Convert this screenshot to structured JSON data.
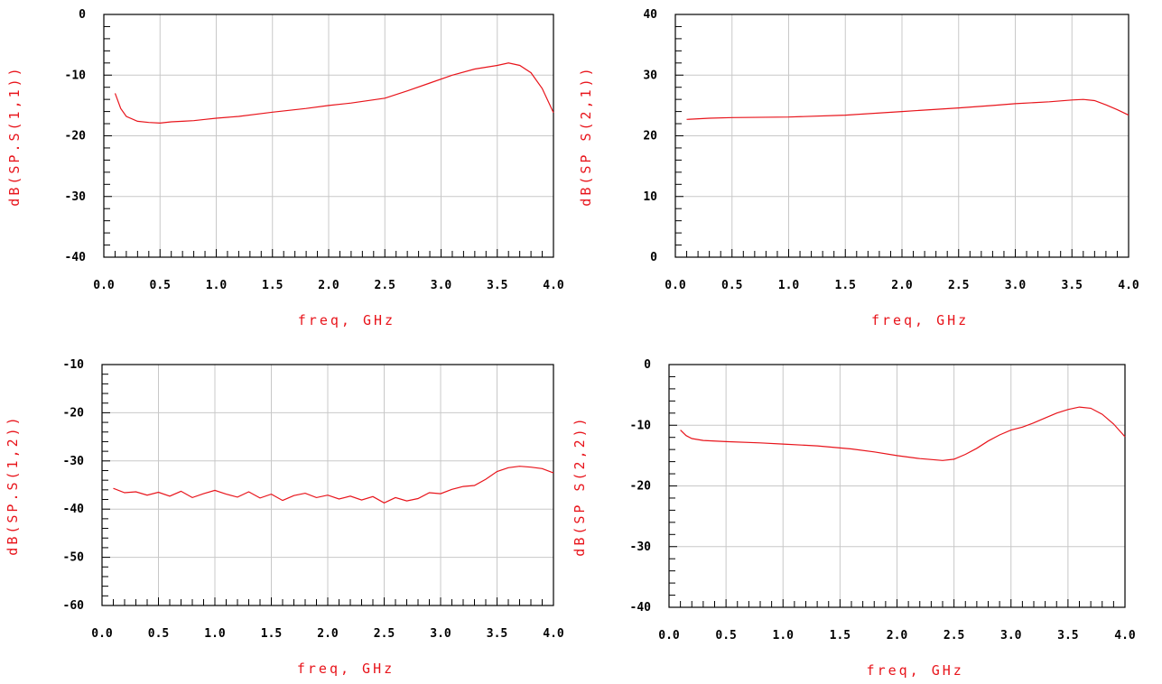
{
  "colors": {
    "trace": "#e8141b",
    "axis": "#000000",
    "grid": "#c8c8c8",
    "label": "#e8141b"
  },
  "chart_data": [
    {
      "type": "line",
      "xlabel": "freq, GHz",
      "ylabel": "dB(SP.S(1,1))",
      "xlim": [
        0,
        4.0
      ],
      "ylim": [
        -40,
        0
      ],
      "xticks": [
        "0.0",
        "0.5",
        "1.0",
        "1.5",
        "2.0",
        "2.5",
        "3.0",
        "3.5",
        "4.0"
      ],
      "yticks": [
        "0",
        "-10",
        "-20",
        "-30",
        "-40"
      ],
      "grid": true,
      "series": [
        {
          "name": "",
          "x": [
            0.1,
            0.15,
            0.2,
            0.3,
            0.4,
            0.5,
            0.6,
            0.7,
            0.8,
            0.9,
            1.0,
            1.2,
            1.5,
            1.8,
            2.0,
            2.2,
            2.5,
            2.7,
            2.9,
            3.1,
            3.3,
            3.5,
            3.6,
            3.7,
            3.8,
            3.9,
            4.0
          ],
          "y": [
            -13,
            -15.5,
            -16.8,
            -17.6,
            -17.8,
            -17.9,
            -17.7,
            -17.6,
            -17.5,
            -17.3,
            -17.1,
            -16.8,
            -16.1,
            -15.5,
            -15,
            -14.6,
            -13.8,
            -12.6,
            -11.3,
            -10,
            -9,
            -8.4,
            -8,
            -8.4,
            -9.6,
            -12.2,
            -16.2
          ]
        }
      ]
    },
    {
      "type": "line",
      "xlabel": "freq, GHz",
      "ylabel": "dB(SP S(2,1))",
      "xlim": [
        0,
        4.0
      ],
      "ylim": [
        0,
        40
      ],
      "xticks": [
        "0.0",
        "0.5",
        "1.0",
        "1.5",
        "2.0",
        "2.5",
        "3.0",
        "3.5",
        "4.0"
      ],
      "yticks": [
        "40",
        "30",
        "20",
        "10",
        "0"
      ],
      "grid": true,
      "series": [
        {
          "name": "",
          "x": [
            0.1,
            0.3,
            0.5,
            1.0,
            1.5,
            2.0,
            2.5,
            2.8,
            3.0,
            3.3,
            3.5,
            3.6,
            3.7,
            3.8,
            3.9,
            4.0
          ],
          "y": [
            22.7,
            22.9,
            23,
            23.1,
            23.4,
            24,
            24.6,
            25,
            25.3,
            25.6,
            25.9,
            26,
            25.8,
            25.1,
            24.3,
            23.4
          ]
        }
      ]
    },
    {
      "type": "line",
      "xlabel": "freq, GHz",
      "ylabel": "dB(SP.S(1,2))",
      "xlim": [
        0,
        4.0
      ],
      "ylim": [
        -60,
        -10
      ],
      "xticks": [
        "0.0",
        "0.5",
        "1.0",
        "1.5",
        "2.0",
        "2.5",
        "3.0",
        "3.5",
        "4.0"
      ],
      "yticks": [
        "-10",
        "-20",
        "-30",
        "-40",
        "-50",
        "-60"
      ],
      "grid": true,
      "series": [
        {
          "name": "",
          "x": [
            0.1,
            0.2,
            0.3,
            0.4,
            0.5,
            0.6,
            0.7,
            0.8,
            0.9,
            1.0,
            1.1,
            1.2,
            1.3,
            1.4,
            1.5,
            1.6,
            1.7,
            1.8,
            1.9,
            2.0,
            2.1,
            2.2,
            2.3,
            2.4,
            2.5,
            2.6,
            2.7,
            2.8,
            2.9,
            3.0,
            3.1,
            3.2,
            3.3,
            3.4,
            3.5,
            3.6,
            3.7,
            3.8,
            3.9,
            4.0
          ],
          "y": [
            -35.7,
            -36.6,
            -36.4,
            -37.1,
            -36.5,
            -37.3,
            -36.3,
            -37.6,
            -36.8,
            -36.1,
            -36.9,
            -37.5,
            -36.4,
            -37.7,
            -36.9,
            -38.2,
            -37.2,
            -36.7,
            -37.6,
            -37.1,
            -37.9,
            -37.3,
            -38.1,
            -37.4,
            -38.7,
            -37.6,
            -38.3,
            -37.8,
            -36.6,
            -36.8,
            -35.9,
            -35.3,
            -35.1,
            -33.8,
            -32.2,
            -31.4,
            -31.1,
            -31.3,
            -31.6,
            -32.5
          ]
        }
      ]
    },
    {
      "type": "line",
      "xlabel": "freq, GHz",
      "ylabel": "dB(SP S(2,2))",
      "xlim": [
        0,
        4.0
      ],
      "ylim": [
        -40,
        0
      ],
      "xticks": [
        "0.0",
        "0.5",
        "1.0",
        "1.5",
        "2.0",
        "2.5",
        "3.0",
        "3.5",
        "4.0"
      ],
      "yticks": [
        "0",
        "-10",
        "-20",
        "-30",
        "-40"
      ],
      "grid": true,
      "series": [
        {
          "name": "",
          "x": [
            0.1,
            0.15,
            0.2,
            0.3,
            0.5,
            0.8,
            1.0,
            1.3,
            1.6,
            1.8,
            2.0,
            2.2,
            2.4,
            2.5,
            2.6,
            2.7,
            2.8,
            2.9,
            3.0,
            3.1,
            3.2,
            3.3,
            3.4,
            3.5,
            3.6,
            3.7,
            3.8,
            3.9,
            4.0
          ],
          "y": [
            -10.8,
            -11.7,
            -12.2,
            -12.5,
            -12.7,
            -12.9,
            -13.1,
            -13.4,
            -13.9,
            -14.4,
            -15,
            -15.5,
            -15.8,
            -15.6,
            -14.8,
            -13.8,
            -12.6,
            -11.6,
            -10.8,
            -10.3,
            -9.6,
            -8.8,
            -8,
            -7.4,
            -7,
            -7.2,
            -8.2,
            -9.8,
            -11.9
          ]
        }
      ]
    }
  ]
}
